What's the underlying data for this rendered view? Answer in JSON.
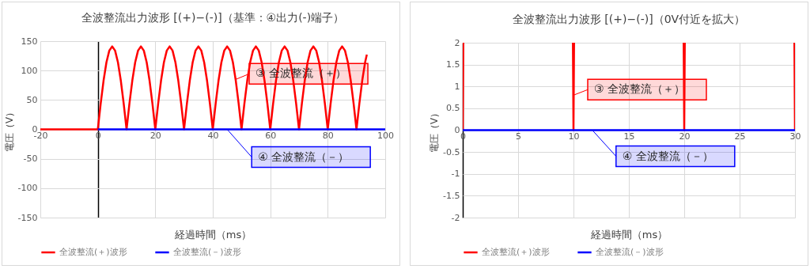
{
  "chart_data": [
    {
      "type": "line",
      "title": "全波整流出力波形 [(+)−(-)]（基準：④出力(-)端子）",
      "xlabel": "経過時間（ms）",
      "ylabel": "電圧（V）",
      "xlim": [
        -20,
        100
      ],
      "ylim": [
        -150,
        150
      ],
      "xticks": [
        -20,
        0,
        20,
        40,
        60,
        80,
        100
      ],
      "yticks": [
        -150,
        -100,
        -50,
        0,
        50,
        100,
        150
      ],
      "grid": true,
      "legend": "bottom",
      "annotations": [
        {
          "text": "③ 全波整流（＋）",
          "x": 48,
          "y": 85
        },
        {
          "text": "④ 全波整流（－）",
          "x": 45,
          "y": 0
        }
      ],
      "series": [
        {
          "name": "全波整流(＋)波形",
          "color": "#ff0000",
          "x": [
            -20,
            0,
            1,
            2,
            3,
            4,
            5,
            6,
            7,
            8,
            9,
            10,
            11,
            12,
            13,
            14,
            15,
            16,
            17,
            18,
            19,
            20,
            21,
            22,
            23,
            24,
            25,
            26,
            27,
            28,
            29,
            30,
            31,
            32,
            33,
            34,
            35,
            36,
            37,
            38,
            39,
            40,
            41,
            42,
            43,
            44,
            45,
            46,
            47,
            48,
            49,
            50,
            51,
            52,
            53,
            54,
            55,
            56,
            57,
            58,
            59,
            60,
            61,
            62,
            63,
            64,
            65,
            66,
            67,
            68,
            69,
            70,
            71,
            72,
            73,
            74,
            75,
            76,
            77,
            78,
            79,
            80,
            81,
            82,
            83,
            84,
            85,
            86,
            87,
            88,
            89,
            90,
            91,
            92,
            93,
            93.6
          ],
          "values": [
            0,
            0,
            44,
            83,
            114,
            134,
            141,
            134,
            114,
            83,
            44,
            0,
            44,
            83,
            114,
            134,
            141,
            134,
            114,
            83,
            44,
            0,
            44,
            83,
            114,
            134,
            141,
            134,
            114,
            83,
            44,
            0,
            44,
            83,
            114,
            134,
            141,
            134,
            114,
            83,
            44,
            0,
            44,
            83,
            114,
            134,
            141,
            134,
            114,
            83,
            44,
            0,
            44,
            83,
            114,
            134,
            141,
            134,
            114,
            83,
            44,
            0,
            44,
            83,
            114,
            134,
            141,
            134,
            114,
            83,
            44,
            0,
            44,
            83,
            114,
            134,
            141,
            134,
            114,
            83,
            44,
            0,
            44,
            83,
            114,
            134,
            141,
            134,
            114,
            83,
            44,
            0,
            44,
            83,
            114,
            127
          ]
        },
        {
          "name": "全波整流(－)波形",
          "color": "#0000ff",
          "x": [
            0,
            100
          ],
          "values": [
            0,
            0
          ]
        }
      ]
    },
    {
      "type": "line",
      "title": "全波整流出力波形 [(+)−(-)]（0V付近を拡大）",
      "xlabel": "経過時間（ms）",
      "ylabel": "電圧（V）",
      "xlim": [
        0,
        30
      ],
      "ylim": [
        -2,
        2
      ],
      "xticks": [
        0,
        5,
        10,
        15,
        20,
        25,
        30
      ],
      "yticks": [
        -2,
        -1.5,
        -1,
        -0.5,
        0,
        0.5,
        1,
        1.5,
        2
      ],
      "grid": true,
      "legend": "bottom",
      "annotations": [
        {
          "text": "③ 全波整流（＋）",
          "x": 10,
          "y": 0.8
        },
        {
          "text": "④ 全波整流（－）",
          "x": 11.7,
          "y": 0
        }
      ],
      "series": [
        {
          "name": "全波整流(＋)波形",
          "color": "#ff0000",
          "x": [
            0,
            0.05,
            5,
            9.95,
            10,
            10.05,
            15,
            19.95,
            20,
            20.05,
            25,
            29.95,
            30
          ],
          "values": [
            0,
            2,
            null,
            2,
            0,
            2,
            null,
            2,
            0,
            2,
            null,
            2,
            0
          ]
        },
        {
          "name": "全波整流(－)波形",
          "color": "#0000ff",
          "x": [
            0,
            30
          ],
          "values": [
            0,
            0
          ]
        }
      ]
    }
  ]
}
